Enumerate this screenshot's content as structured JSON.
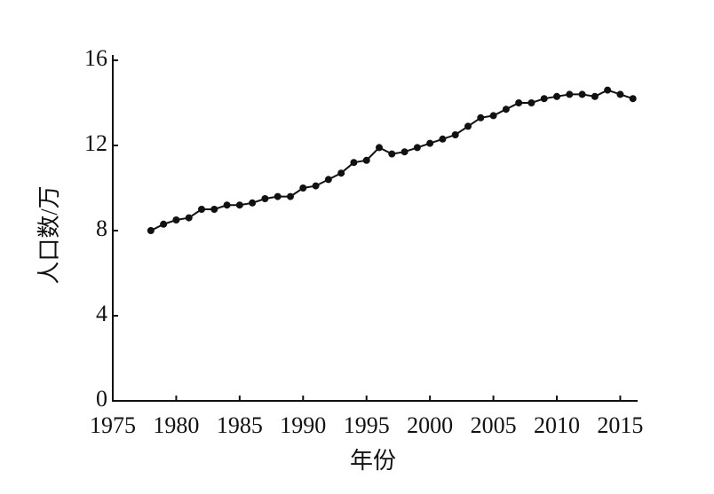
{
  "chart_data": {
    "type": "line",
    "xlabel": "年份",
    "ylabel": "人口数/万",
    "x": [
      1978,
      1979,
      1980,
      1981,
      1982,
      1983,
      1984,
      1985,
      1986,
      1987,
      1988,
      1989,
      1990,
      1991,
      1992,
      1993,
      1994,
      1995,
      1996,
      1997,
      1998,
      1999,
      2000,
      2001,
      2002,
      2003,
      2004,
      2005,
      2006,
      2007,
      2008,
      2009,
      2010,
      2011,
      2012,
      2013,
      2014,
      2015,
      2016
    ],
    "values": [
      8.0,
      8.3,
      8.5,
      8.6,
      9.0,
      9.0,
      9.2,
      9.2,
      9.3,
      9.5,
      9.6,
      9.6,
      10.0,
      10.1,
      10.4,
      10.7,
      11.2,
      11.3,
      11.9,
      11.6,
      11.7,
      11.9,
      12.1,
      12.3,
      12.5,
      12.9,
      13.3,
      13.4,
      13.7,
      14.0,
      14.0,
      14.2,
      14.3,
      14.4,
      14.4,
      14.3,
      14.6,
      14.4,
      14.2
    ],
    "color": "#111111",
    "xlim": [
      1975,
      2016.3
    ],
    "xticks": [
      1975,
      1980,
      1985,
      1990,
      1995,
      2000,
      2005,
      2010,
      2015
    ],
    "ylim": [
      0,
      16
    ],
    "yticks": [
      0,
      4,
      8,
      12,
      16
    ]
  }
}
